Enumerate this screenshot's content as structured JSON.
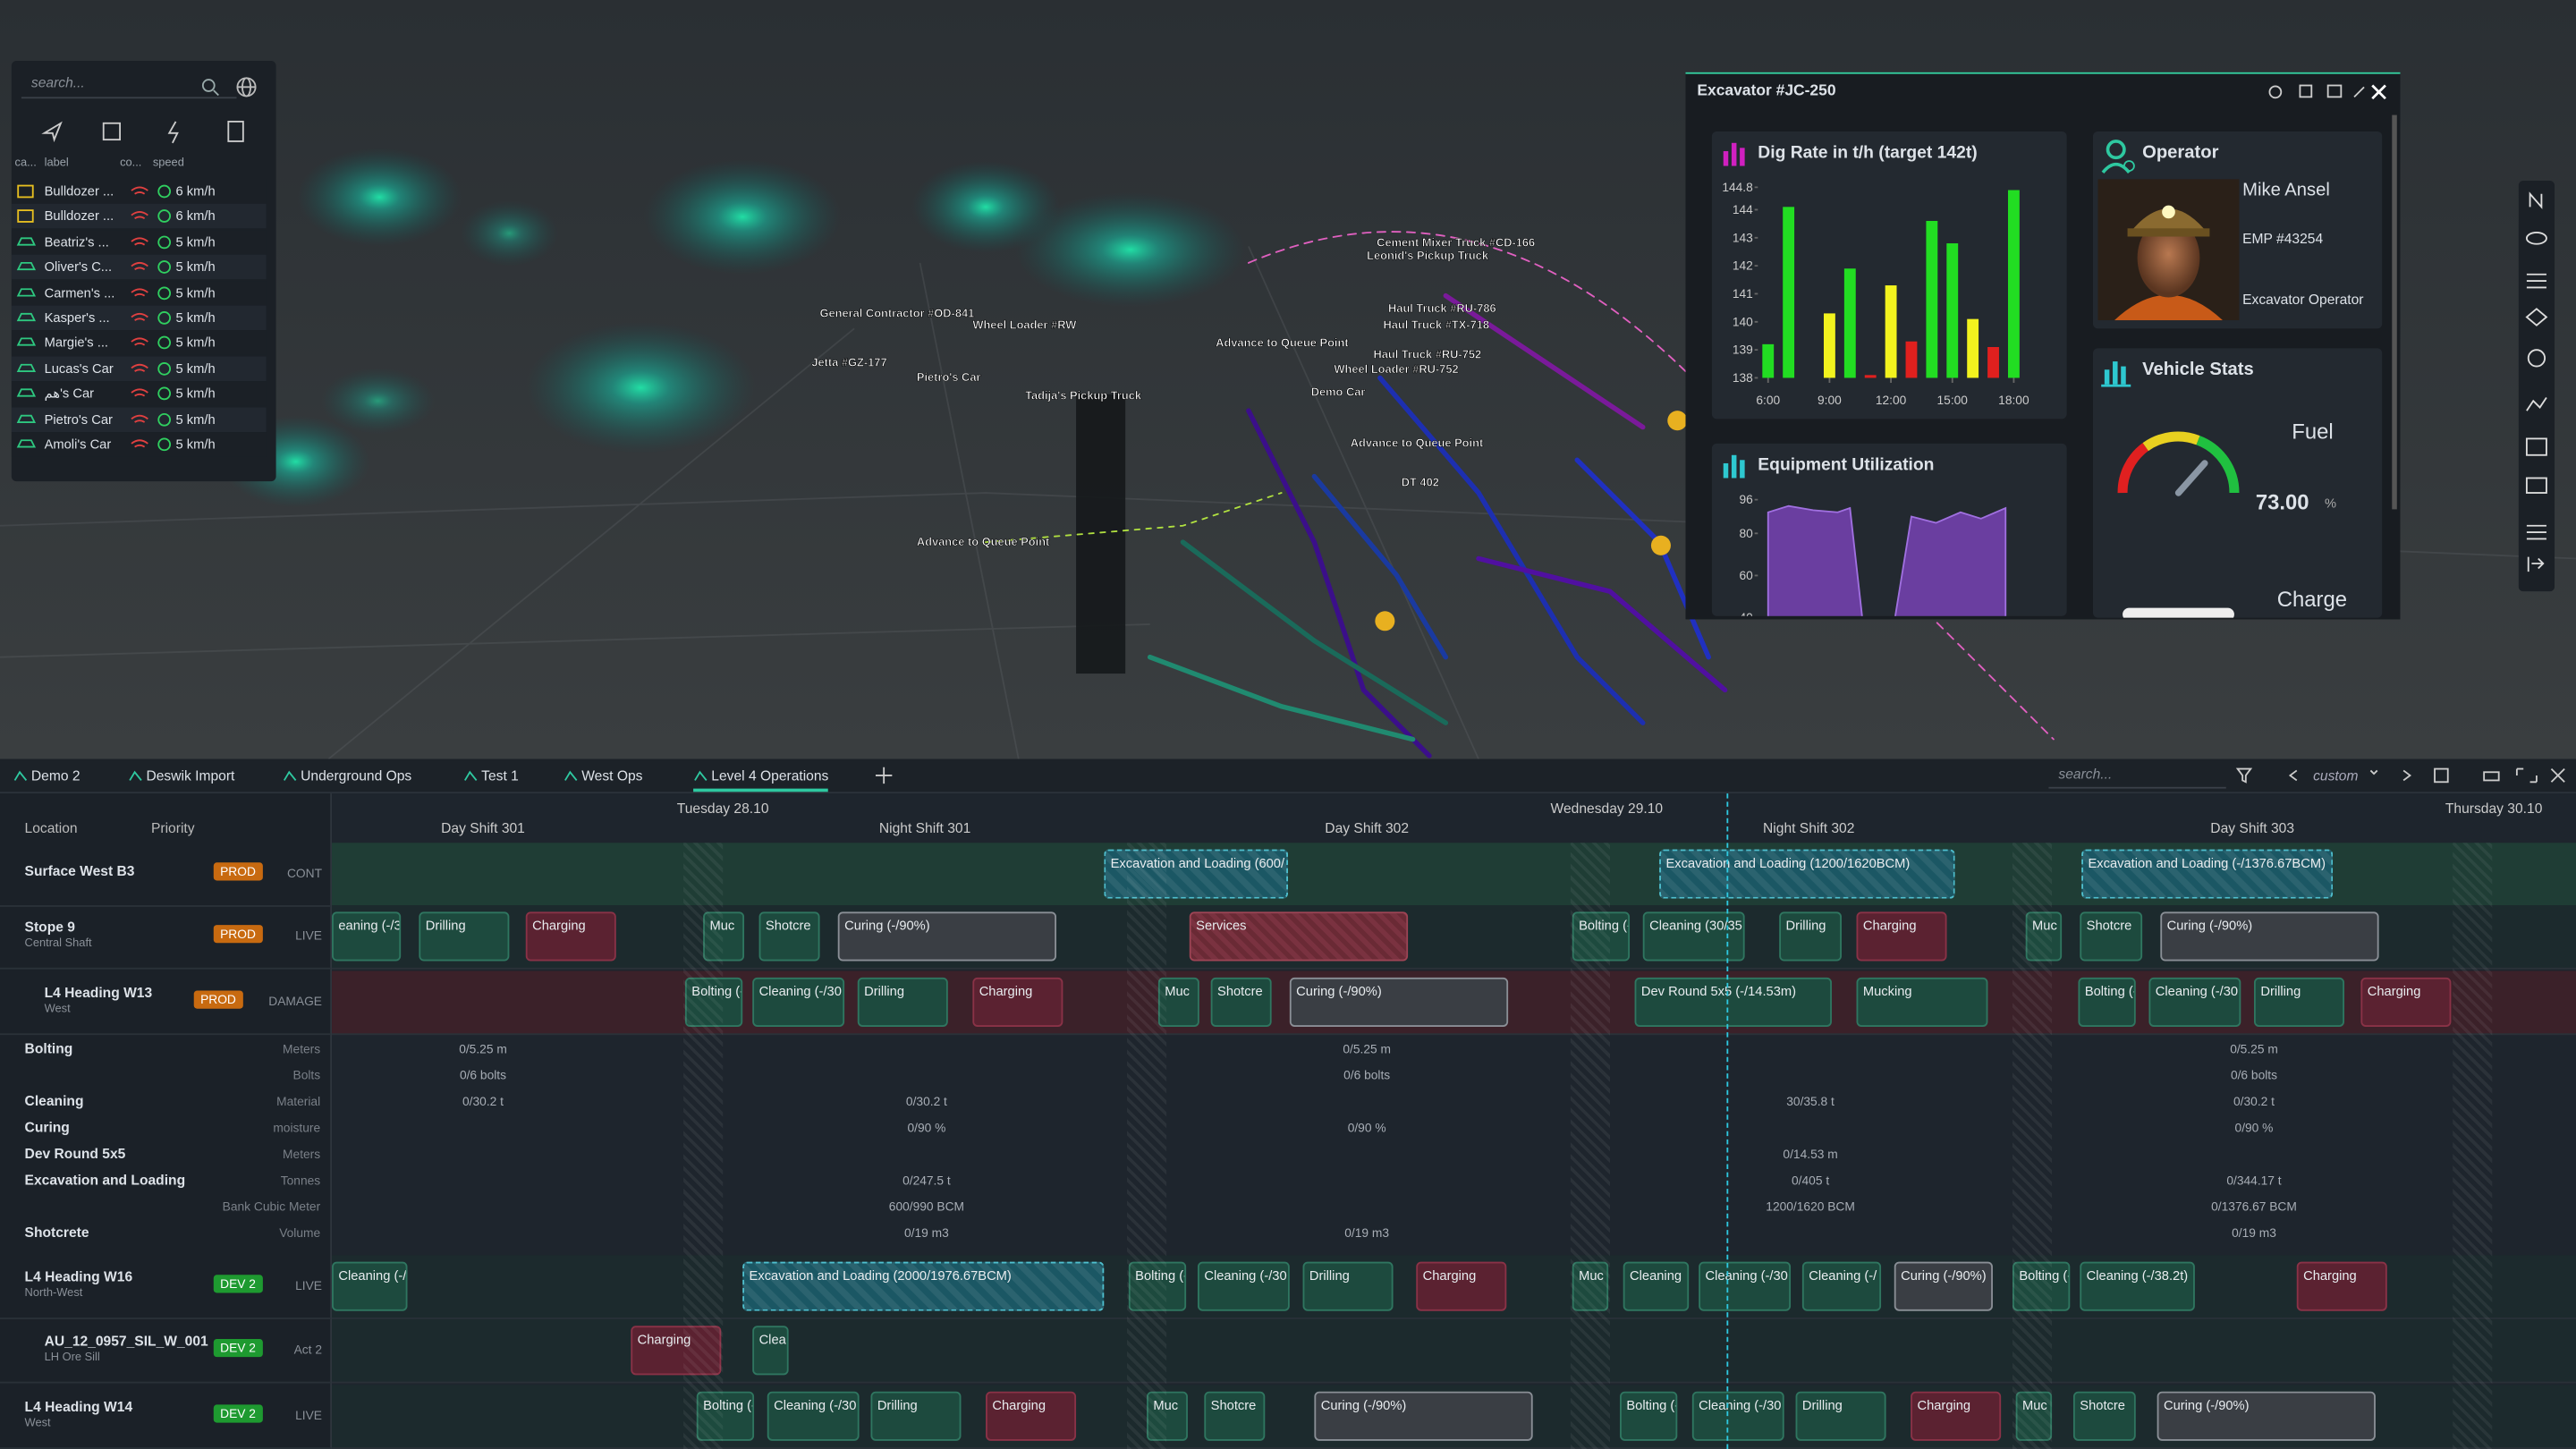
{
  "map": {
    "labels": [
      "General Contractor #OD-841",
      "Advance to Queue Point",
      "Advance to Queue Point",
      "DT 402",
      "Demo Car",
      "Tadija's Pickup Truck",
      "Pietro's Car",
      "Wheel Loader #RU-752",
      "Haul Truck #RU-752",
      "Leonid's Pickup Truck",
      "Cement Mixer Truck #CD-166",
      "Haul Truck #RU-786",
      "Advance to Queue Point",
      "Haul Truck #TX-718",
      "Jetta #GZ-177",
      "Wheel Loader #RW"
    ]
  },
  "vehicle_list": {
    "search": "search...",
    "columns": [
      "ca...",
      "label",
      "co...",
      "speed"
    ],
    "rows": [
      {
        "label": "Bulldozer ...",
        "speed": "6 km/h"
      },
      {
        "label": "Bulldozer ...",
        "speed": "6 km/h"
      },
      {
        "label": "Beatriz's ...",
        "speed": "5 km/h"
      },
      {
        "label": "Oliver's C...",
        "speed": "5 km/h"
      },
      {
        "label": "Carmen's ...",
        "speed": "5 km/h"
      },
      {
        "label": "Kasper's ...",
        "speed": "5 km/h"
      },
      {
        "label": "Margie's ...",
        "speed": "5 km/h"
      },
      {
        "label": "Lucas's Car",
        "speed": "5 km/h"
      },
      {
        "label": "هم's Car",
        "speed": "5 km/h"
      },
      {
        "label": "Pietro's Car",
        "speed": "5 km/h"
      },
      {
        "label": "Amoli's Car",
        "speed": "5 km/h"
      }
    ]
  },
  "panel": {
    "title": "Excavator #JC-250",
    "operator": {
      "heading": "Operator",
      "name": "Mike Ansel",
      "id": "EMP #43254",
      "role": "Excavator Operator"
    },
    "vehicle_stats": {
      "heading": "Vehicle Stats",
      "fuel_label": "Fuel",
      "fuel_value": "73.00",
      "fuel_unit": "%",
      "charge_label": "Charge"
    }
  },
  "chart_data": [
    {
      "type": "bar",
      "title": "Dig Rate in t/h (target 142t)",
      "x": [
        6,
        7,
        9,
        10,
        11,
        12,
        13,
        14,
        15,
        16,
        17,
        18
      ],
      "values": [
        139.2,
        144.1,
        140.3,
        141.9,
        138.1,
        141.3,
        139.3,
        143.6,
        142.8,
        140.1,
        139.1,
        144.7
      ],
      "colors": [
        "#22dd22",
        "#22dd22",
        "#f2f21e",
        "#22dd22",
        "#e0201e",
        "#f2f21e",
        "#e0201e",
        "#22dd22",
        "#22dd22",
        "#f2f21e",
        "#e0201e",
        "#22dd22"
      ],
      "xlim": [
        5.5,
        18.5
      ],
      "xticks": [
        {
          "value": 6,
          "label": "6:00"
        },
        {
          "value": 9,
          "label": "9:00"
        },
        {
          "value": 12,
          "label": "12:00"
        },
        {
          "value": 15,
          "label": "15:00"
        },
        {
          "value": 18,
          "label": "18:00"
        }
      ],
      "ylim": [
        138,
        144.8
      ],
      "yticks": [
        138,
        139,
        140,
        141,
        142,
        143,
        144,
        144.8
      ]
    },
    {
      "type": "area",
      "title": "Equipment Utilization",
      "x": [
        6,
        7,
        8.2,
        9.4,
        10,
        10.6,
        11.4,
        12.2,
        13,
        14.2,
        15.4,
        16.4,
        17.6
      ],
      "values": [
        90,
        93,
        91,
        90,
        92,
        40,
        null,
        40,
        88,
        85,
        90,
        87,
        92
      ],
      "color": "#6a3ea0",
      "xlim": [
        5.5,
        18.5
      ],
      "ylim": [
        40,
        100
      ],
      "yticks": [
        40,
        60,
        80,
        96
      ]
    }
  ],
  "timeline": {
    "tabs": [
      "Demo 2",
      "Deswik Import",
      "Underground Ops",
      "Test 1",
      "West Ops",
      "Level 4 Operations"
    ],
    "search": "search...",
    "range": "custom",
    "header": {
      "location": "Location",
      "priority": "Priority"
    },
    "days": [
      "Tuesday 28.10",
      "Wednesday 29.10",
      "Thursday 30.10"
    ],
    "shifts": [
      "Day Shift 301",
      "Night Shift 301",
      "Day Shift 302",
      "Night Shift 302",
      "Day Shift 303"
    ],
    "rows": [
      {
        "name": "Surface West B3",
        "priority": "PROD",
        "status": "CONT",
        "tasks": [
          "Excavation and Loading (600/",
          "Excavation and Loading (1200/1620BCM)",
          "Excavation and Loading (-/1376.67BCM)"
        ]
      },
      {
        "name": "Stope 9",
        "sub": "Central Shaft",
        "priority": "PROD",
        "status": "LIVE",
        "tasks": [
          "eaning (-/30",
          "Drilling",
          "Charging",
          "Muc",
          "Shotcre",
          "Curing (-/90%)",
          "Services",
          "Bolting (-",
          "Cleaning (30/35.",
          "Drilling",
          "Charging",
          "Muc",
          "Shotcre",
          "Curing (-/90%)"
        ]
      },
      {
        "name": "L4 Heading W13",
        "sub": "West",
        "priority": "PROD",
        "status": "DAMAGE",
        "tasks": [
          "Bolting (-",
          "Cleaning (-/30",
          "Drilling",
          "Charging",
          "Muc",
          "Shotcre",
          "Curing (-/90%)",
          "Dev Round 5x5 (-/14.53m)",
          "Mucking",
          "Bolting (-",
          "Cleaning (-/30",
          "Drilling",
          "Charging"
        ]
      },
      {
        "name": "L4 Heading W16",
        "sub": "North-West",
        "priority": "DEV 2",
        "status": "LIVE",
        "tasks": [
          "Cleaning (-/30",
          "Excavation and Loading (2000/1976.67BCM)",
          "Bolting (-",
          "Cleaning (-/30",
          "Drilling",
          "Charging",
          "Muc",
          "Cleaning",
          "Cleaning (-/30",
          "Cleaning (-/",
          "Curing (-/90%)",
          "Bolting (-",
          "Cleaning (-/38.2t)",
          "Charging"
        ]
      },
      {
        "name": "AU_12_0957_SIL_W_001",
        "sub": "LH Ore Sill",
        "priority": "DEV 2",
        "status": "Act 2",
        "tasks": [
          "Charging",
          "Clea"
        ]
      },
      {
        "name": "L4 Heading W14",
        "sub": "West",
        "priority": "DEV 2",
        "status": "LIVE",
        "tasks": [
          "Bolting (-",
          "Cleaning (-/30",
          "Drilling",
          "Charging",
          "Muc",
          "Shotcre",
          "Curing (-/90%)",
          "Bolting (-",
          "Cleaning (-/30",
          "Drilling",
          "Charging",
          "Muc",
          "Shotcre",
          "Curing (-/90%)"
        ]
      }
    ],
    "metrics": [
      {
        "name": "Bolting",
        "unit": "Meters",
        "values": [
          "0/5.25 m",
          "0/5.25 m",
          "0/5.25 m"
        ]
      },
      {
        "unit": "Bolts",
        "values": [
          "0/6 bolts",
          "0/6 bolts",
          "0/6 bolts"
        ]
      },
      {
        "name": "Cleaning",
        "unit": "Material",
        "values": [
          "0/30.2 t",
          "0/30.2 t",
          "30/35.8 t",
          "0/30.2 t"
        ]
      },
      {
        "name": "Curing",
        "unit": "moisture",
        "values": [
          "0/90 %",
          "0/90 %",
          "0/90 %"
        ]
      },
      {
        "name": "Dev Round 5x5",
        "unit": "Meters",
        "values": [
          "0/14.53 m"
        ]
      },
      {
        "name": "Excavation and Loading",
        "unit": "Tonnes",
        "values": [
          "0/247.5 t",
          "0/405 t",
          "0/344.17 t"
        ]
      },
      {
        "unit": "Bank Cubic Meter",
        "values": [
          "600/990 BCM",
          "1200/1620 BCM",
          "0/1376.67 BCM"
        ]
      },
      {
        "name": "Shotcrete",
        "unit": "Volume",
        "values": [
          "0/19 m3",
          "0/19 m3",
          "0/19 m3"
        ]
      }
    ]
  }
}
